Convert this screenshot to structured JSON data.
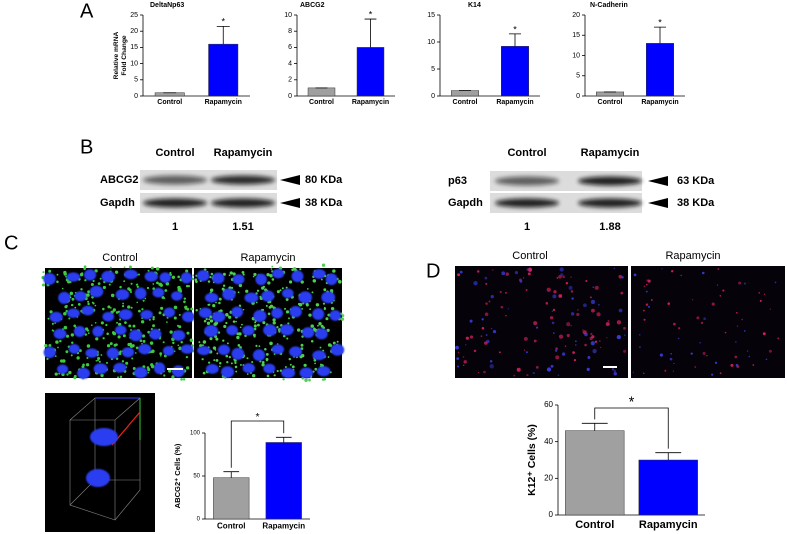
{
  "panel_labels": [
    "A",
    "B",
    "C",
    "D"
  ],
  "chart_data": [
    {
      "type": "bar",
      "title": "DeltaNp63",
      "y_label": "Relative mRNA Fold Change",
      "categories": [
        "Control",
        "Rapamycin"
      ],
      "values": [
        1,
        16
      ],
      "errors": [
        0,
        5.5
      ],
      "colors": [
        "#a0a0a0",
        "#0000ff"
      ],
      "ylim": [
        0,
        25
      ],
      "yticks": [
        0,
        5,
        10,
        15,
        20,
        25
      ],
      "annotation": "*",
      "bracket": false
    },
    {
      "type": "bar",
      "title": "ABCG2",
      "categories": [
        "Control",
        "Rapamycin"
      ],
      "values": [
        1,
        6
      ],
      "errors": [
        0,
        3.5
      ],
      "colors": [
        "#a0a0a0",
        "#0000ff"
      ],
      "ylim": [
        0,
        10
      ],
      "yticks": [
        0,
        2,
        4,
        6,
        8,
        10
      ],
      "annotation": "*",
      "bracket": false
    },
    {
      "type": "bar",
      "title": "K14",
      "categories": [
        "Control",
        "Rapamycin"
      ],
      "values": [
        1,
        9.2
      ],
      "errors": [
        0,
        2.3
      ],
      "colors": [
        "#a0a0a0",
        "#0000ff"
      ],
      "ylim": [
        0,
        15
      ],
      "yticks": [
        0,
        5,
        10,
        15
      ],
      "annotation": "*",
      "bracket": false
    },
    {
      "type": "bar",
      "title": "N-Cadherin",
      "categories": [
        "Control",
        "Rapamycin"
      ],
      "values": [
        1,
        13
      ],
      "errors": [
        0,
        4
      ],
      "colors": [
        "#a0a0a0",
        "#0000ff"
      ],
      "ylim": [
        0,
        20
      ],
      "yticks": [
        0,
        5,
        10,
        15,
        20
      ],
      "annotation": "*",
      "bracket": false
    },
    {
      "type": "bar",
      "y_label": "ABCG2⁺ Cells (%)",
      "categories": [
        "Control",
        "Rapamycin"
      ],
      "values": [
        48,
        89
      ],
      "errors": [
        7,
        6
      ],
      "colors": [
        "#a0a0a0",
        "#0000ff"
      ],
      "ylim": [
        0,
        100
      ],
      "yticks": [
        0,
        50,
        100
      ],
      "annotation": "*",
      "bracket": true
    },
    {
      "type": "bar",
      "y_label": "K12⁺ Cells (%)",
      "categories": [
        "Control",
        "Rapamycin"
      ],
      "values": [
        46,
        30
      ],
      "errors": [
        4,
        4
      ],
      "colors": [
        "#a0a0a0",
        "#0000ff"
      ],
      "ylim": [
        0,
        60
      ],
      "yticks": [
        0,
        20,
        40,
        60
      ],
      "annotation": "*",
      "bracket": true
    }
  ],
  "blots": [
    {
      "lanes": [
        "Control",
        "Rapamycin"
      ],
      "rows": [
        {
          "name": "ABCG2",
          "size": "80 KDa"
        },
        {
          "name": "Gapdh",
          "size": "38 KDa"
        }
      ],
      "ratios": [
        1,
        1.51
      ]
    },
    {
      "lanes": [
        "Control",
        "Rapamycin"
      ],
      "rows": [
        {
          "name": "p63",
          "size": "63 KDa"
        },
        {
          "name": "Gapdh",
          "size": "38 KDa"
        }
      ],
      "ratios": [
        1,
        1.88
      ]
    }
  ],
  "images": [
    {
      "labels": [
        "Control",
        "Rapamycin"
      ]
    },
    {
      "labels": [
        "Control",
        "Rapamycin"
      ]
    }
  ]
}
